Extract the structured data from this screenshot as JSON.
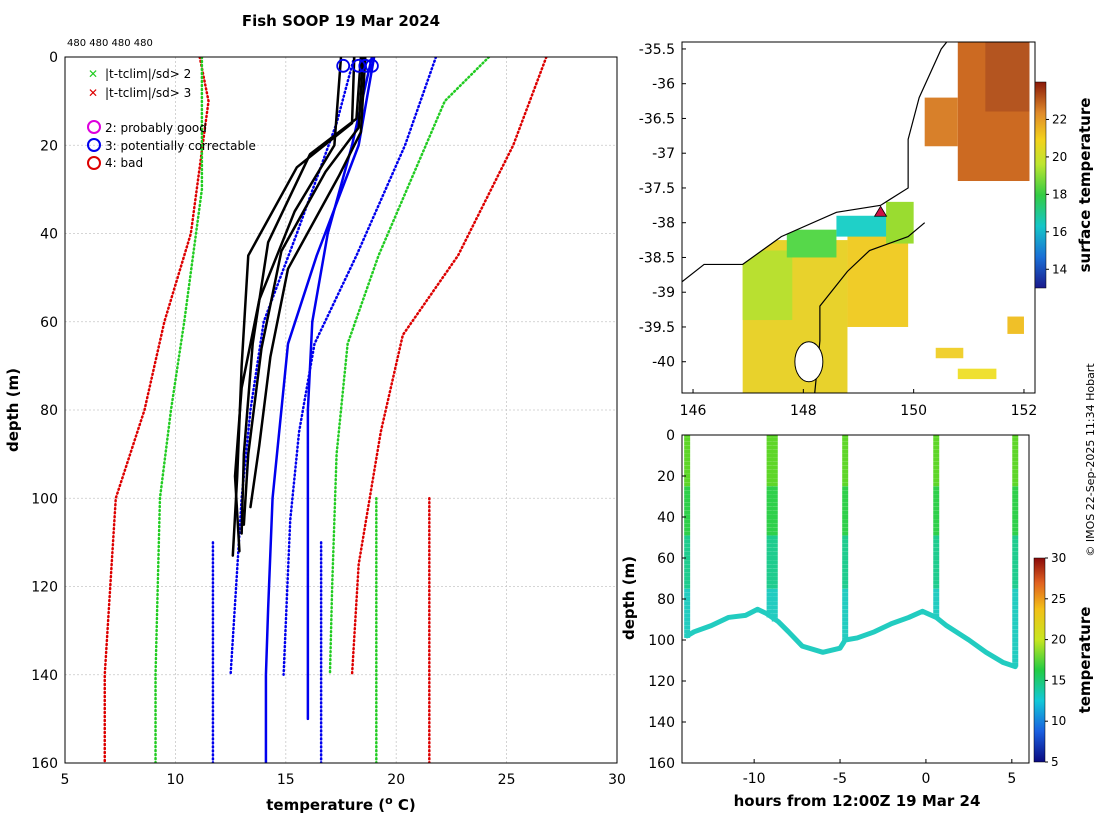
{
  "title": "Fish SOOP 19 Mar 2024",
  "top_counts": "480 480 480 480",
  "legend": {
    "x_gt2": "|t-tclim|/sd> 2",
    "x_gt3": "|t-tclim|/sd> 3",
    "q2": "2: probably good",
    "q3": "3: potentially correctable",
    "q4": "4: bad"
  },
  "copyright": "© IMOS 22-Sep-2025 11:34 Hobart",
  "colors": {
    "green": "#22cc22",
    "red": "#dd0000",
    "blue": "#0000ee",
    "black": "#000000",
    "magenta": "#dd00dd"
  },
  "chart_data": [
    {
      "type": "line",
      "name": "profile",
      "xlabel": "temperature (o C)",
      "xlabel_main": "temperature (",
      "xlabel_sup": "o",
      "xlabel_end": " C)",
      "ylabel": "depth (m)",
      "xlim": [
        5,
        30
      ],
      "ylim": [
        160,
        0
      ],
      "xticks": [
        5,
        10,
        15,
        20,
        25,
        30
      ],
      "yticks": [
        0,
        20,
        40,
        60,
        80,
        100,
        120,
        140,
        160
      ],
      "series": [
        {
          "name": "clim -3sd",
          "style": "dotted",
          "color": "red",
          "x": [
            11.1,
            11.5,
            10.7,
            9.5,
            8.6,
            7.3,
            6.8,
            6.8
          ],
          "y": [
            0,
            10,
            40,
            60,
            80,
            100,
            140,
            160
          ]
        },
        {
          "name": "clim -2sd",
          "style": "dotted",
          "color": "green",
          "x": [
            11.2,
            11.2,
            10.4,
            9.8,
            9.3,
            9.1,
            9.1
          ],
          "y": [
            0,
            30,
            60,
            80,
            100,
            140,
            160
          ]
        },
        {
          "name": "clim +2sd",
          "style": "dotted",
          "color": "green",
          "x": [
            24.2,
            22.2,
            19.2,
            17.8,
            17.3,
            17.1,
            17.0
          ],
          "y": [
            0,
            10,
            45,
            65,
            90,
            120,
            140
          ]
        },
        {
          "name": "clim +3sd",
          "style": "dotted",
          "color": "red",
          "x": [
            26.8,
            25.3,
            22.8,
            20.3,
            19.3,
            18.3,
            18.0
          ],
          "y": [
            0,
            20,
            45,
            63,
            85,
            115,
            140
          ]
        },
        {
          "name": "clim -2sd deep",
          "style": "dotted",
          "color": "green",
          "x": [
            19.1,
            19.1
          ],
          "y": [
            100,
            160
          ]
        },
        {
          "name": "clim +3sd deep",
          "style": "dotted",
          "color": "red",
          "x": [
            21.5,
            21.5
          ],
          "y": [
            100,
            160
          ]
        },
        {
          "name": "blue dotted L",
          "style": "dotted",
          "color": "blue",
          "x": [
            18.1,
            17.3,
            15.5,
            14.0,
            13.4,
            13.0,
            12.5
          ],
          "y": [
            0,
            15,
            40,
            60,
            80,
            100,
            140
          ]
        },
        {
          "name": "blue dotted R",
          "style": "dotted",
          "color": "blue",
          "x": [
            21.8,
            20.4,
            18.2,
            16.3,
            15.6,
            15.2,
            14.9
          ],
          "y": [
            0,
            20,
            45,
            65,
            85,
            105,
            140
          ]
        },
        {
          "name": "blue dotted deep",
          "style": "dotted",
          "color": "blue",
          "x": [
            11.7,
            11.7,
            16.6,
            16.6
          ],
          "y": [
            110,
            160,
            110,
            160
          ]
        },
        {
          "name": "blue solid",
          "style": "solid",
          "color": "blue",
          "x": [
            19.0,
            18.3,
            16.4,
            15.1,
            14.4,
            14.2,
            14.1,
            14.1
          ],
          "y": [
            0,
            20,
            45,
            65,
            100,
            125,
            140,
            160
          ]
        },
        {
          "name": "blue solid 2",
          "style": "solid",
          "color": "blue",
          "x": [
            18.9,
            18.0,
            16.9,
            16.2,
            16.0,
            16.0
          ],
          "y": [
            0,
            20,
            40,
            60,
            80,
            150
          ]
        },
        {
          "name": "obs 1",
          "style": "solid",
          "color": "black",
          "x": [
            18.1,
            18.0,
            15.5,
            13.3,
            13.0,
            12.8,
            12.6
          ],
          "y": [
            0,
            15,
            25,
            45,
            70,
            95,
            113
          ]
        },
        {
          "name": "obs 2",
          "style": "solid",
          "color": "black",
          "x": [
            18.4,
            18.2,
            16.1,
            14.2,
            13.5,
            13.1,
            13.0
          ],
          "y": [
            0,
            14,
            22,
            42,
            65,
            90,
            108
          ]
        },
        {
          "name": "obs 3",
          "style": "solid",
          "color": "black",
          "x": [
            18.5,
            18.3,
            16.8,
            14.8,
            13.9,
            13.3,
            13.1
          ],
          "y": [
            0,
            16,
            26,
            44,
            66,
            90,
            106
          ]
        },
        {
          "name": "obs 4",
          "style": "solid",
          "color": "black",
          "x": [
            18.6,
            18.4,
            17.4,
            15.1,
            14.3,
            13.8,
            13.4
          ],
          "y": [
            0,
            17,
            27,
            48,
            68,
            88,
            102
          ]
        },
        {
          "name": "obs 5",
          "style": "solid",
          "color": "black",
          "x": [
            17.5,
            17.2,
            15.4,
            13.8,
            13.0,
            12.7,
            12.9
          ],
          "y": [
            0,
            20,
            35,
            55,
            75,
            95,
            112
          ]
        }
      ],
      "qc_markers": [
        {
          "flag": "3",
          "color": "blue",
          "x": 17.6,
          "y": 2
        },
        {
          "flag": "3",
          "color": "blue",
          "x": 18.3,
          "y": 2
        },
        {
          "flag": "3",
          "color": "blue",
          "x": 18.6,
          "y": 2
        },
        {
          "flag": "3",
          "color": "blue",
          "x": 18.9,
          "y": 2
        }
      ]
    },
    {
      "type": "heatmap",
      "name": "map",
      "xlabel": "",
      "ylabel": "",
      "xlim": [
        145.8,
        152.2
      ],
      "ylim": [
        -40.45,
        -35.4
      ],
      "xticks": [
        146,
        148,
        150,
        152
      ],
      "yticks": [
        -35.5,
        -36,
        -36.5,
        -37,
        -37.5,
        -38,
        -38.5,
        -39,
        -39.5,
        -40
      ],
      "colorbar_label": "surface temperature",
      "colorbar_range": [
        13,
        24
      ],
      "colorbar_ticks": [
        14,
        16,
        18,
        20,
        22
      ],
      "coast": [
        [
          145.8,
          -38.85
        ],
        [
          146.2,
          -38.6
        ],
        [
          146.9,
          -38.6
        ],
        [
          147.6,
          -38.2
        ],
        [
          148.6,
          -37.85
        ],
        [
          149.4,
          -37.75
        ],
        [
          149.9,
          -37.5
        ],
        [
          149.9,
          -36.8
        ],
        [
          150.1,
          -36.2
        ],
        [
          150.5,
          -35.5
        ],
        [
          150.6,
          -35.4
        ]
      ],
      "tas_coast": [
        [
          148.2,
          -40.5
        ],
        [
          148.3,
          -39.7
        ],
        [
          148.3,
          -39.2
        ],
        [
          148.8,
          -38.7
        ],
        [
          149.2,
          -38.4
        ],
        [
          149.9,
          -38.2
        ],
        [
          150.2,
          -38.0
        ]
      ],
      "ship_marker": {
        "lon": 149.4,
        "lat": -37.85
      }
    },
    {
      "type": "scatter",
      "name": "timeseries",
      "xlabel": "hours from 12:00Z 19 Mar 24",
      "ylabel": "depth (m)",
      "xlim": [
        -14.2,
        6.0
      ],
      "ylim": [
        160,
        0
      ],
      "xticks": [
        -10,
        -5,
        0,
        5
      ],
      "yticks": [
        0,
        20,
        40,
        60,
        80,
        100,
        120,
        140,
        160
      ],
      "colorbar_label": "temperature",
      "colorbar_range": [
        5,
        30
      ],
      "colorbar_ticks": [
        5,
        10,
        15,
        20,
        25,
        30
      ],
      "bottom_track": {
        "x": [
          -13.9,
          -13.5,
          -12.5,
          -11.5,
          -10.5,
          -9.8,
          -9.3,
          -8.6,
          -8.0,
          -7.2,
          -6.0,
          -5.0,
          -4.7,
          -4.0,
          -3.0,
          -2.0,
          -1.0,
          -0.2,
          0.6,
          1.2,
          2.5,
          3.5,
          4.5,
          5.2
        ],
        "y": [
          98,
          96,
          93,
          89,
          88,
          85,
          87,
          91,
          96,
          103,
          106,
          104,
          100,
          99,
          96,
          92,
          89,
          86,
          89,
          93,
          100,
          106,
          111,
          113
        ]
      },
      "casts": [
        {
          "x": -13.9,
          "ytop": 0,
          "ybot": 98
        },
        {
          "x": -9.1,
          "ytop": 0,
          "ybot": 88
        },
        {
          "x": -8.8,
          "ytop": 0,
          "ybot": 91
        },
        {
          "x": -4.7,
          "ytop": 0,
          "ybot": 100
        },
        {
          "x": 0.6,
          "ytop": 0,
          "ybot": 89
        },
        {
          "x": 5.2,
          "ytop": 0,
          "ybot": 113
        }
      ]
    }
  ]
}
